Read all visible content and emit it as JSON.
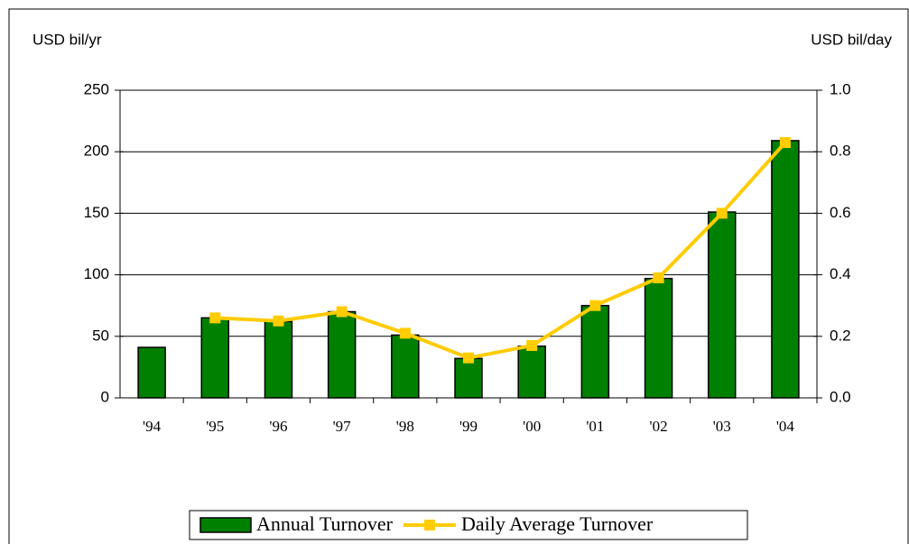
{
  "chart_data": {
    "type": "bar",
    "ylabel": "USD bil/yr",
    "y2label": "USD bil/day",
    "categories": [
      "'94",
      "'95",
      "'96",
      "'97",
      "'98",
      "'99",
      "'00",
      "'01",
      "'02",
      "'03",
      "'04"
    ],
    "series": [
      {
        "name": "Annual Turnover",
        "type": "bar",
        "color": "#008000",
        "values": [
          41,
          65,
          62,
          70,
          51,
          32,
          42,
          75,
          97,
          151,
          209
        ]
      },
      {
        "name": "Daily Average Turnover",
        "type": "line",
        "axis": "y2",
        "color": "#ffcc00",
        "values": [
          null,
          0.26,
          0.25,
          0.28,
          0.21,
          0.13,
          0.17,
          0.3,
          0.39,
          0.6,
          0.83
        ]
      }
    ],
    "ylim": [
      0,
      250
    ],
    "yticks": [
      0,
      50,
      100,
      150,
      200,
      250
    ],
    "y2lim": [
      0,
      1
    ],
    "y2ticks": [
      {
        "value": 0,
        "label": "0.0"
      },
      0.2,
      0.4,
      0.6,
      0.8,
      {
        "value": 1,
        "label": "1.0"
      }
    ],
    "grid": true,
    "legend": "bottom"
  }
}
